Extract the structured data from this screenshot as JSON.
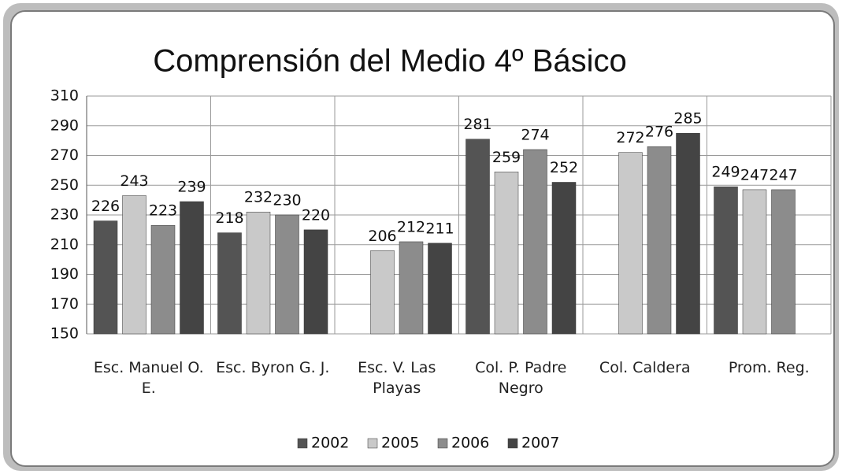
{
  "chart_data": {
    "type": "bar",
    "title": "Comprensión del Medio 4º Básico",
    "categories": [
      "Esc. Manuel O. E.",
      "Esc. Byron G. J.",
      "Esc. V. Las Playas",
      "Col. P. Padre Negro",
      "Col. Caldera",
      "Prom. Reg."
    ],
    "series": [
      {
        "name": "2002",
        "color": "#545454",
        "values": [
          226,
          218,
          null,
          281,
          null,
          249
        ]
      },
      {
        "name": "2005",
        "color": "#c9c9c9",
        "values": [
          243,
          232,
          206,
          259,
          272,
          247
        ]
      },
      {
        "name": "2006",
        "color": "#8c8c8c",
        "values": [
          223,
          230,
          212,
          274,
          276,
          247
        ]
      },
      {
        "name": "2007",
        "color": "#444444",
        "values": [
          239,
          220,
          211,
          252,
          285,
          null
        ]
      }
    ],
    "ylim": [
      150,
      310
    ],
    "yticks": [
      150,
      170,
      190,
      210,
      230,
      250,
      270,
      290,
      310
    ],
    "grid": true,
    "legend": "bottom"
  }
}
